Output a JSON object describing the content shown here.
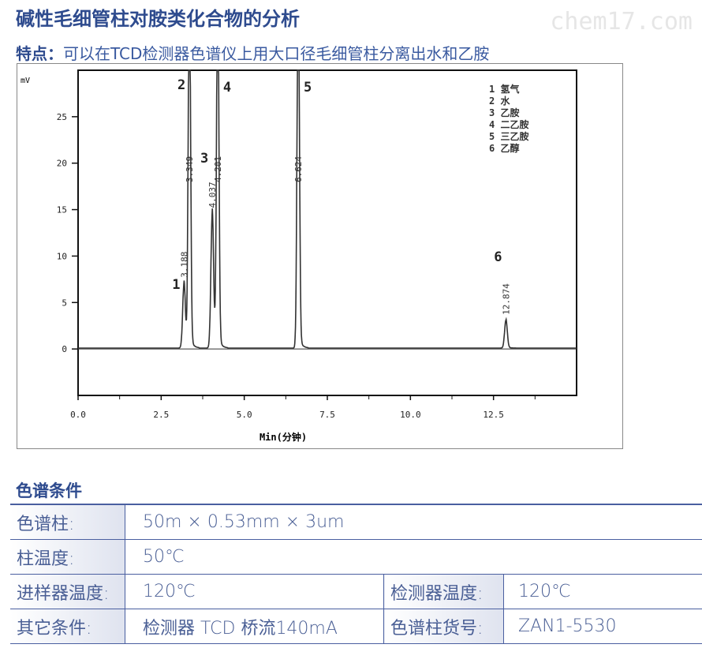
{
  "title": "碱性毛细管柱对胺类化合物的分析",
  "watermark": "chem17.com",
  "feature": {
    "label": "特点：",
    "text": "可以在TCD检测器色谱仪上用大口径毛细管柱分离出水和乙胺"
  },
  "chart_data": {
    "type": "line",
    "xlabel": "Min(分钟)",
    "ylabel": "mV",
    "xlim": [
      0,
      15
    ],
    "ylim": [
      -5,
      30
    ],
    "xticks": [
      "0.0",
      "2.5",
      "5.0",
      "7.5",
      "10.0",
      "12.5"
    ],
    "yticks": [
      "0",
      "5",
      "10",
      "15",
      "20",
      "25"
    ],
    "grid": false,
    "peaks": [
      {
        "id": "1",
        "rt": "3.188",
        "x": 3.188,
        "height": 7
      },
      {
        "id": "2",
        "rt": "3.349",
        "x": 3.349,
        "height": 40
      },
      {
        "id": "3",
        "rt": "4.037",
        "x": 4.037,
        "height": 14.5
      },
      {
        "id": "4",
        "rt": "4.201",
        "x": 4.201,
        "height": 40
      },
      {
        "id": "5",
        "rt": "6.624",
        "x": 6.624,
        "height": 40
      },
      {
        "id": "6",
        "rt": "12.874",
        "x": 12.874,
        "height": 3
      }
    ],
    "legend": [
      "1 氢气",
      "2 水",
      "3 乙胺",
      "4 二乙胺",
      "5 三乙胺",
      "6 乙醇"
    ],
    "legend_position": "top-right"
  },
  "conditions": {
    "heading": "色谱条件",
    "column_label": "色谱柱:",
    "column_value": "50m × 0.53mm × 3um",
    "col_temp_label": "柱温度:",
    "col_temp_value": "50℃",
    "inj_temp_label": "进样器温度:",
    "inj_temp_value": "120℃",
    "det_temp_label": "检测器温度:",
    "det_temp_value": "120℃",
    "other_label": "其它条件:",
    "other_value": "检测器 TCD 桥流140mA",
    "part_label": "色谱柱货号:",
    "part_value": "ZAN1-5530"
  }
}
